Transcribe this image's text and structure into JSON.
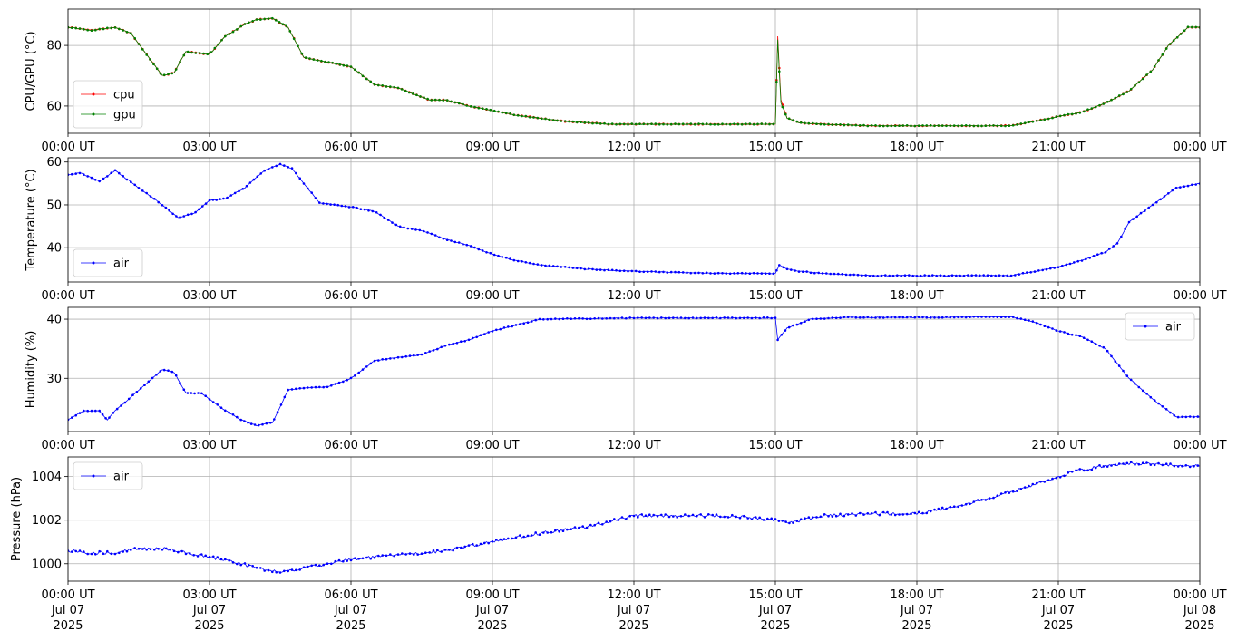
{
  "chart_data": [
    {
      "type": "line",
      "ylabel": "CPU/GPU (°C)",
      "ylim": [
        51,
        92
      ],
      "yticks": [
        60,
        80
      ],
      "grid": true,
      "legend_loc": "lower-left",
      "x": [
        "00:00",
        "00:30",
        "01:00",
        "01:20",
        "01:40",
        "02:00",
        "02:15",
        "02:30",
        "02:45",
        "03:00",
        "03:20",
        "03:45",
        "04:00",
        "04:20",
        "04:40",
        "05:00",
        "05:20",
        "06:00",
        "06:30",
        "07:00",
        "07:40",
        "08:00",
        "08:30",
        "09:00",
        "09:30",
        "10:00",
        "10:30",
        "11:00",
        "11:30",
        "12:00",
        "13:00",
        "14:00",
        "15:00",
        "15:03",
        "15:07",
        "15:15",
        "15:30",
        "16:00",
        "17:00",
        "18:00",
        "19:00",
        "20:00",
        "20:30",
        "21:00",
        "21:30",
        "22:00",
        "22:30",
        "23:00",
        "23:20",
        "23:45",
        "24:00"
      ],
      "series": [
        {
          "name": "cpu",
          "color": "#ff0000",
          "values": [
            86,
            85,
            86,
            84,
            77,
            70,
            71,
            78,
            77.5,
            77,
            83,
            87,
            88.5,
            89,
            86,
            76,
            75,
            73,
            67,
            66,
            62,
            62,
            60,
            58.5,
            57,
            56,
            55,
            54.5,
            54,
            54,
            54,
            54,
            54,
            83,
            62,
            56,
            54.5,
            54,
            53.5,
            53.5,
            53.5,
            53.5,
            55,
            56.5,
            58,
            61,
            65,
            72,
            80,
            86,
            86
          ]
        },
        {
          "name": "gpu",
          "color": "#008000",
          "values": [
            86,
            85,
            86,
            84,
            77,
            70,
            71,
            78,
            77.5,
            77,
            83,
            87,
            88.5,
            89,
            86,
            76,
            75,
            73,
            67,
            66,
            62,
            62,
            60,
            58.5,
            57,
            56,
            55,
            54.5,
            54,
            54,
            54,
            54,
            54,
            82,
            61,
            56,
            54.5,
            54,
            53.5,
            53.5,
            53.5,
            53.5,
            55,
            56.5,
            58,
            61,
            65,
            72,
            80,
            86,
            86
          ]
        }
      ]
    },
    {
      "type": "line",
      "ylabel": "Temperature (°C)",
      "ylim": [
        32,
        61
      ],
      "yticks": [
        40,
        50,
        60
      ],
      "grid": true,
      "legend_loc": "lower-left",
      "x": [
        "00:00",
        "00:15",
        "00:40",
        "01:00",
        "01:30",
        "02:00",
        "02:20",
        "02:40",
        "03:00",
        "03:20",
        "03:45",
        "04:10",
        "04:30",
        "04:45",
        "05:00",
        "05:20",
        "06:00",
        "06:30",
        "07:00",
        "07:30",
        "08:00",
        "08:30",
        "09:00",
        "09:30",
        "10:00",
        "11:00",
        "12:00",
        "13:00",
        "14:00",
        "15:00",
        "15:05",
        "15:15",
        "15:30",
        "16:00",
        "17:00",
        "18:00",
        "19:00",
        "20:00",
        "20:30",
        "21:00",
        "21:30",
        "22:00",
        "22:15",
        "22:30",
        "23:00",
        "23:30",
        "24:00"
      ],
      "series": [
        {
          "name": "air",
          "color": "#0000ff",
          "values": [
            57,
            57.5,
            55.5,
            58,
            54,
            50,
            47,
            48,
            51,
            51.5,
            54,
            58,
            59.5,
            58.5,
            55,
            50.5,
            49.5,
            48.5,
            45,
            44,
            42,
            40.5,
            38.5,
            37,
            36,
            35,
            34.5,
            34.2,
            34,
            34,
            36,
            35,
            34.5,
            34,
            33.5,
            33.5,
            33.5,
            33.5,
            34.5,
            35.5,
            37,
            39,
            41,
            46,
            50,
            54,
            55
          ]
        }
      ]
    },
    {
      "type": "line",
      "ylabel": "Humidity (%)",
      "ylim": [
        21,
        42
      ],
      "yticks": [
        30,
        40
      ],
      "grid": true,
      "legend_loc": "upper-right",
      "x": [
        "00:00",
        "00:20",
        "00:40",
        "00:50",
        "01:00",
        "01:30",
        "02:00",
        "02:15",
        "02:30",
        "02:50",
        "03:15",
        "03:40",
        "04:00",
        "04:20",
        "04:40",
        "05:10",
        "05:30",
        "06:00",
        "06:30",
        "07:00",
        "07:30",
        "08:00",
        "08:30",
        "09:00",
        "09:30",
        "10:00",
        "11:00",
        "12:00",
        "13:00",
        "14:00",
        "15:00",
        "15:03",
        "15:15",
        "15:45",
        "16:30",
        "17:30",
        "18:30",
        "19:30",
        "20:00",
        "20:30",
        "21:00",
        "21:30",
        "22:00",
        "22:30",
        "23:00",
        "23:30",
        "24:00"
      ],
      "series": [
        {
          "name": "air",
          "color": "#0000ff",
          "values": [
            23,
            24.5,
            24.5,
            23,
            24.5,
            28,
            31.5,
            31,
            27.5,
            27.5,
            25,
            23,
            22,
            22.5,
            28,
            28.5,
            28.5,
            30,
            33,
            33.5,
            34,
            35.5,
            36.5,
            38,
            39,
            40,
            40.1,
            40.2,
            40.2,
            40.2,
            40.2,
            36.5,
            38.5,
            40,
            40.3,
            40.3,
            40.3,
            40.4,
            40.4,
            39.5,
            38,
            37,
            35,
            30,
            26.5,
            23.5,
            23.5
          ]
        }
      ]
    },
    {
      "type": "scatter",
      "ylabel": "Pressure (hPa)",
      "ylim": [
        999.2,
        1004.9
      ],
      "yticks": [
        1000,
        1002,
        1004
      ],
      "grid": true,
      "legend_loc": "upper-left",
      "x": [
        "00:00",
        "00:30",
        "01:00",
        "01:30",
        "02:00",
        "02:30",
        "03:00",
        "03:30",
        "04:00",
        "04:30",
        "05:00",
        "05:30",
        "06:00",
        "07:00",
        "08:00",
        "09:00",
        "10:00",
        "11:00",
        "12:00",
        "13:00",
        "14:00",
        "15:00",
        "15:20",
        "16:00",
        "17:00",
        "18:00",
        "18:30",
        "19:00",
        "20:00",
        "21:00",
        "21:30",
        "22:00",
        "22:30",
        "23:00",
        "23:30",
        "24:00"
      ],
      "series": [
        {
          "name": "air",
          "color": "#0000ff",
          "values": [
            1000.6,
            1000.5,
            1000.5,
            1000.7,
            1000.7,
            1000.5,
            1000.3,
            1000.1,
            999.8,
            999.6,
            999.8,
            1000.0,
            1000.2,
            1000.4,
            1000.6,
            1001.0,
            1001.4,
            1001.7,
            1002.2,
            1002.2,
            1002.2,
            1002.0,
            1001.9,
            1002.2,
            1002.3,
            1002.3,
            1002.5,
            1002.7,
            1003.3,
            1004.0,
            1004.3,
            1004.5,
            1004.6,
            1004.6,
            1004.5,
            1004.5
          ]
        }
      ]
    }
  ],
  "x_ticks": [
    {
      "time": "00:00 UT",
      "date": "Jul 07",
      "year": "2025"
    },
    {
      "time": "03:00 UT",
      "date": "Jul 07",
      "year": "2025"
    },
    {
      "time": "06:00 UT",
      "date": "Jul 07",
      "year": "2025"
    },
    {
      "time": "09:00 UT",
      "date": "Jul 07",
      "year": "2025"
    },
    {
      "time": "12:00 UT",
      "date": "Jul 07",
      "year": "2025"
    },
    {
      "time": "15:00 UT",
      "date": "Jul 07",
      "year": "2025"
    },
    {
      "time": "18:00 UT",
      "date": "Jul 07",
      "year": "2025"
    },
    {
      "time": "21:00 UT",
      "date": "Jul 07",
      "year": "2025"
    },
    {
      "time": "00:00 UT",
      "date": "Jul 08",
      "year": "2025"
    }
  ],
  "x_range_hours": [
    0,
    24
  ]
}
